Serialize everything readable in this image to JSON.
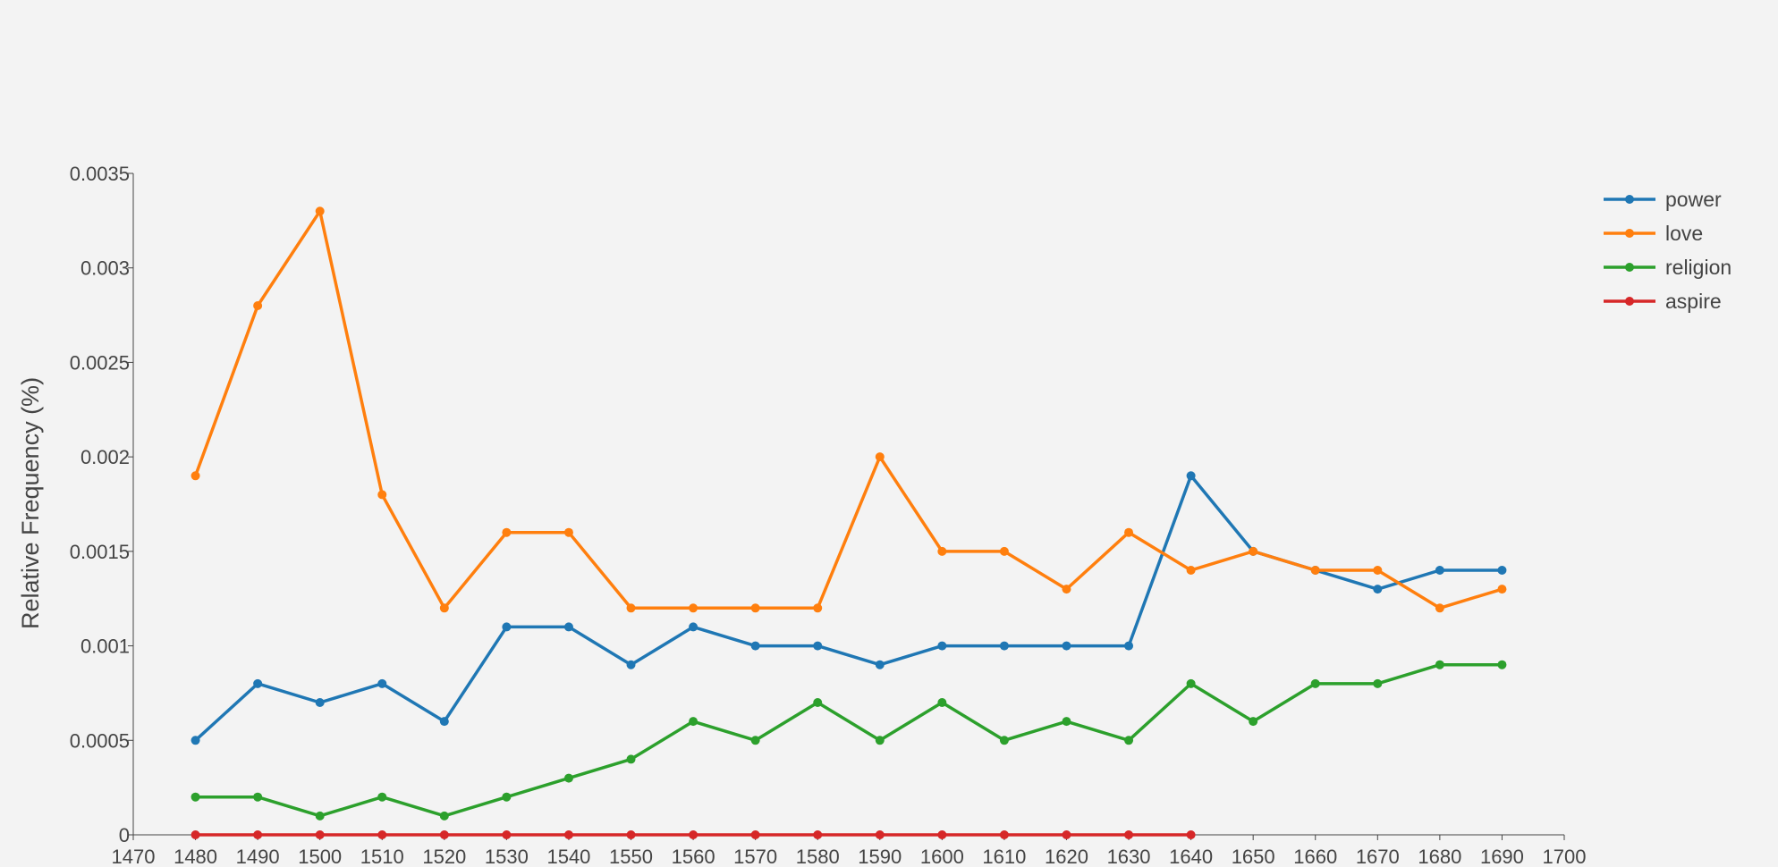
{
  "chart_data": {
    "type": "line",
    "title": "",
    "xlabel": "",
    "ylabel": "Relative Frequency (%)",
    "xlim": [
      1470,
      1700
    ],
    "ylim": [
      0,
      0.0035
    ],
    "x_ticks": [
      "1470",
      "1480",
      "1490",
      "1500",
      "1510",
      "1520",
      "1530",
      "1540",
      "1550",
      "1560",
      "1570",
      "1580",
      "1590",
      "1600",
      "1610",
      "1620",
      "1630",
      "1640",
      "1650",
      "1660",
      "1670",
      "1680",
      "1690",
      "1700"
    ],
    "y_ticks": [
      "0",
      "0.0005",
      "0.001",
      "0.0015",
      "0.002",
      "0.0025",
      "0.003",
      "0.0035"
    ],
    "grid": false,
    "legend_position": "top-right",
    "x": [
      1480,
      1490,
      1500,
      1510,
      1520,
      1530,
      1540,
      1550,
      1560,
      1570,
      1580,
      1590,
      1600,
      1610,
      1620,
      1630,
      1640,
      1650,
      1660,
      1670,
      1680,
      1690
    ],
    "series": [
      {
        "name": "power",
        "color": "#1f77b4",
        "x": [
          1480,
          1490,
          1500,
          1510,
          1520,
          1530,
          1540,
          1550,
          1560,
          1570,
          1580,
          1590,
          1600,
          1610,
          1620,
          1630,
          1640,
          1650,
          1660,
          1670,
          1680,
          1690
        ],
        "values": [
          0.0005,
          0.0008,
          0.0007,
          0.0008,
          0.0006,
          0.0011,
          0.0011,
          0.0009,
          0.0011,
          0.001,
          0.001,
          0.0009,
          0.001,
          0.001,
          0.001,
          0.001,
          0.0019,
          0.0015,
          0.0014,
          0.0013,
          0.0014,
          0.0014
        ]
      },
      {
        "name": "love",
        "color": "#ff7f0e",
        "x": [
          1480,
          1490,
          1500,
          1510,
          1520,
          1530,
          1540,
          1550,
          1560,
          1570,
          1580,
          1590,
          1600,
          1610,
          1620,
          1630,
          1640,
          1650,
          1660,
          1670,
          1680,
          1690
        ],
        "values": [
          0.0019,
          0.0028,
          0.0033,
          0.0018,
          0.0012,
          0.0016,
          0.0016,
          0.0012,
          0.0012,
          0.0012,
          0.0012,
          0.002,
          0.0015,
          0.0015,
          0.0013,
          0.0016,
          0.0014,
          0.0015,
          0.0014,
          0.0014,
          0.0012,
          0.0013
        ]
      },
      {
        "name": "religion",
        "color": "#2ca02c",
        "x": [
          1480,
          1490,
          1500,
          1510,
          1520,
          1530,
          1540,
          1550,
          1560,
          1570,
          1580,
          1590,
          1600,
          1610,
          1620,
          1630,
          1640,
          1650,
          1660,
          1670,
          1680,
          1690
        ],
        "values": [
          0.0002,
          0.0002,
          0.0001,
          0.0002,
          0.0001,
          0.0002,
          0.0003,
          0.0004,
          0.0006,
          0.0005,
          0.0007,
          0.0005,
          0.0007,
          0.0005,
          0.0006,
          0.0005,
          0.0008,
          0.0006,
          0.0008,
          0.0008,
          0.0009,
          0.0009
        ]
      },
      {
        "name": "aspire",
        "color": "#d62728",
        "x": [
          1480,
          1490,
          1500,
          1510,
          1520,
          1530,
          1540,
          1550,
          1560,
          1570,
          1580,
          1590,
          1600,
          1610,
          1620,
          1630,
          1640
        ],
        "values": [
          0,
          0,
          0,
          0,
          0,
          0,
          0,
          0,
          0,
          0,
          0,
          0,
          0,
          0,
          0,
          0,
          0
        ]
      }
    ]
  }
}
